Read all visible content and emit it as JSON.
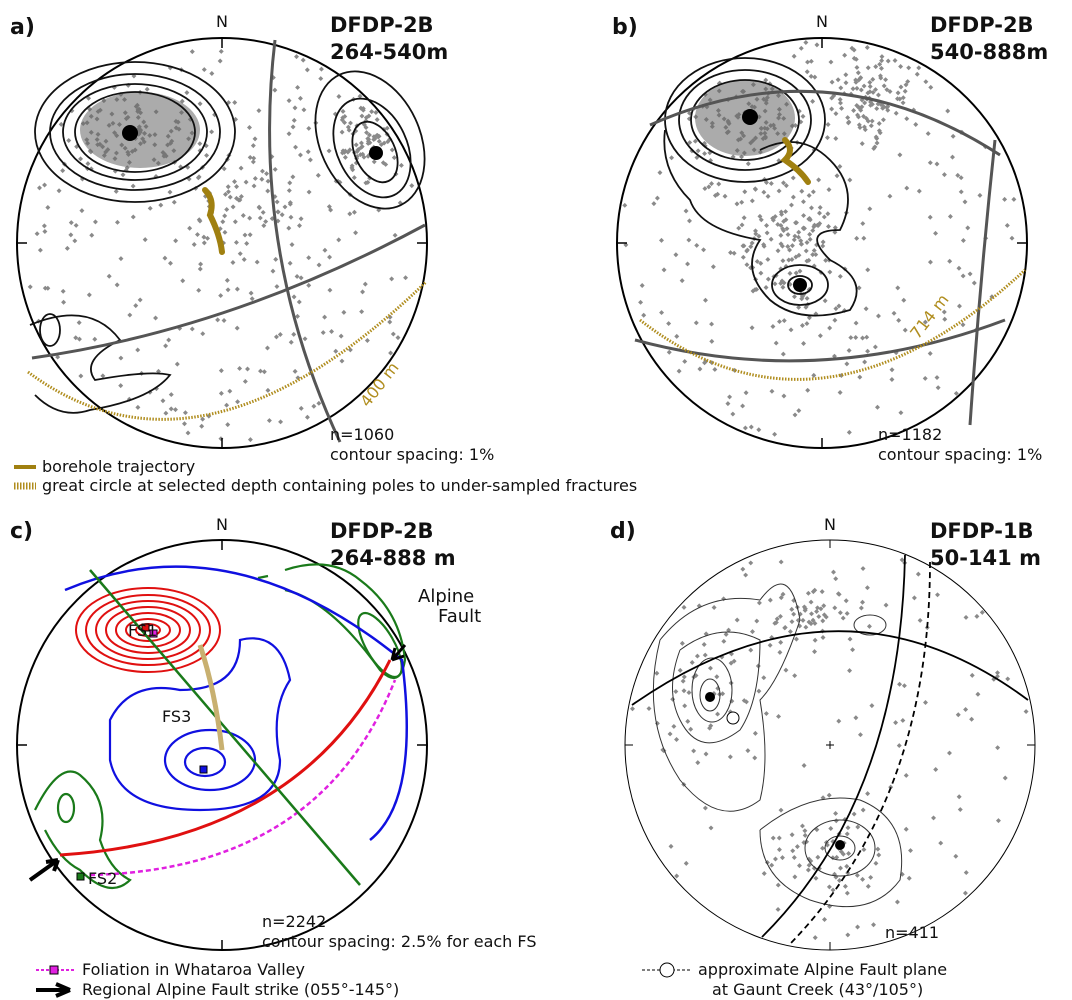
{
  "panels": [
    {
      "label": "a)",
      "north": "N",
      "title": "DFDP-2B",
      "subtitle": "264-540m",
      "depth": "400 m",
      "n": "n=1060",
      "spacing": "contour spacing: 1%"
    },
    {
      "label": "b)",
      "north": "N",
      "title": "DFDP-2B",
      "subtitle": "540-888m",
      "depth": "714 m",
      "n": "n=1182",
      "spacing": "contour spacing: 1%"
    },
    {
      "label": "c)",
      "north": "N",
      "title": "DFDP-2B",
      "subtitle": "264-888 m",
      "fs1": "FS1",
      "fs3": "FS3",
      "fs2": "FS2",
      "fault": [
        "Alpine",
        "Fault"
      ],
      "n": "n=2242",
      "spacing": "contour spacing: 2.5% for each FS"
    },
    {
      "label": "d)",
      "north": "N",
      "title": "DFDP-1B",
      "subtitle": "50-141 m",
      "n": "n=411"
    }
  ],
  "legend_ab": [
    "borehole trajectory",
    "great circle at selected depth containing poles to under-sampled fractures"
  ],
  "legend_c": [
    "Foliation in Whataroa Valley",
    "Regional Alpine Fault strike (055°-145°)"
  ],
  "legend_d": [
    "approximate Alpine Fault plane",
    "at Gaunt Creek (43°/105°)"
  ]
}
